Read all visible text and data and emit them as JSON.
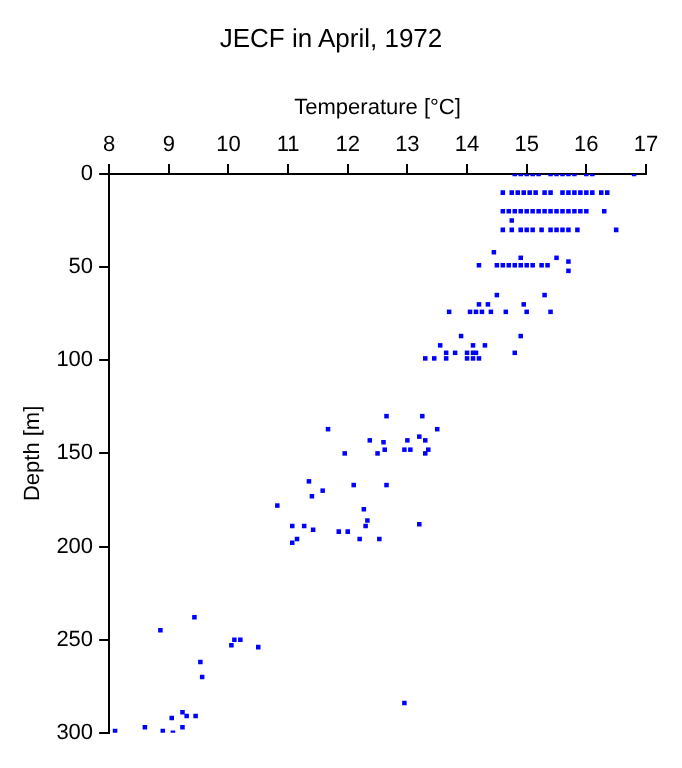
{
  "chart_data": {
    "type": "scatter",
    "title": "JECF in April, 1972",
    "xlabel": "Temperature [°C]",
    "ylabel": "Depth [m]",
    "xlim": [
      8,
      17
    ],
    "xticks": [
      8,
      9,
      10,
      11,
      12,
      13,
      14,
      15,
      16,
      17
    ],
    "ylim": [
      300,
      0
    ],
    "yticks": [
      0,
      50,
      100,
      150,
      200,
      250,
      300
    ],
    "grid": false,
    "legend": false,
    "marker": "square",
    "color": "#0000ff",
    "x": [
      14.8,
      14.9,
      15.0,
      15.1,
      15.2,
      15.4,
      15.5,
      15.6,
      15.7,
      15.8,
      16.0,
      16.1,
      16.8,
      14.6,
      14.75,
      14.85,
      14.95,
      15.05,
      15.15,
      15.3,
      15.4,
      15.6,
      15.7,
      15.8,
      15.9,
      16.0,
      16.1,
      16.25,
      16.35,
      14.6,
      14.7,
      14.8,
      14.9,
      15.0,
      15.1,
      15.2,
      15.3,
      15.4,
      15.5,
      15.6,
      15.7,
      15.8,
      15.9,
      16.0,
      16.3,
      14.75,
      14.6,
      14.75,
      14.9,
      15.0,
      15.1,
      15.25,
      15.4,
      15.5,
      15.6,
      15.7,
      15.85,
      16.5,
      14.45,
      14.9,
      15.5,
      15.7,
      15.7,
      14.2,
      14.5,
      14.6,
      14.7,
      14.8,
      14.9,
      15.0,
      15.1,
      15.25,
      15.35,
      14.5,
      15.3,
      14.2,
      14.35,
      14.95,
      13.7,
      14.05,
      14.15,
      14.25,
      14.4,
      14.65,
      15.0,
      15.4,
      13.9,
      14.9,
      13.55,
      14.1,
      14.3,
      13.65,
      13.8,
      14.0,
      14.1,
      14.15,
      14.8,
      13.3,
      13.45,
      13.65,
      14.0,
      14.1,
      14.2,
      12.65,
      13.25,
      11.67,
      13.5,
      13.2,
      12.37,
      13.0,
      13.3,
      12.6,
      12.62,
      12.95,
      13.05,
      13.35,
      11.95,
      12.5,
      13.3,
      11.35,
      12.1,
      12.65,
      11.58,
      11.4,
      10.82,
      12.27,
      12.33,
      13.2,
      11.07,
      11.27,
      12.3,
      11.42,
      11.85,
      12.0,
      11.15,
      12.2,
      12.53,
      11.07,
      8.86,
      9.43,
      10.1,
      10.2,
      10.05,
      10.5,
      9.53,
      9.56,
      12.95,
      9.23,
      9.3,
      9.45,
      9.05,
      8.6,
      9.23,
      8.1,
      8.9,
      9.07
    ],
    "values": [
      0,
      0,
      0,
      0,
      0,
      0,
      0,
      0,
      0,
      0,
      0,
      0,
      0,
      10,
      10,
      10,
      10,
      10,
      10,
      10,
      10,
      10,
      10,
      10,
      10,
      10,
      10,
      10,
      10,
      20,
      20,
      20,
      20,
      20,
      20,
      20,
      20,
      20,
      20,
      20,
      20,
      20,
      20,
      20,
      20,
      25,
      30,
      30,
      30,
      30,
      30,
      30,
      30,
      30,
      30,
      30,
      30,
      30,
      42,
      45,
      45,
      47,
      52,
      49,
      49,
      49,
      49,
      49,
      49,
      49,
      49,
      49,
      49,
      65,
      65,
      70,
      70,
      70,
      74,
      74,
      74,
      74,
      74,
      74,
      74,
      74,
      87,
      87,
      92,
      92,
      92,
      96,
      96,
      96,
      96,
      96,
      96,
      99,
      99,
      99,
      99,
      99,
      99,
      130,
      130,
      137,
      137,
      141,
      143,
      143,
      143,
      144,
      148,
      148,
      148,
      148,
      150,
      150,
      150,
      165,
      167,
      167,
      170,
      173,
      178,
      180,
      186,
      188,
      189,
      189,
      189,
      191,
      192,
      192,
      196,
      196,
      196,
      198,
      245,
      238,
      250,
      250,
      253,
      254,
      262,
      270,
      284,
      289,
      291,
      291,
      292,
      297,
      297,
      299,
      299,
      300
    ]
  }
}
